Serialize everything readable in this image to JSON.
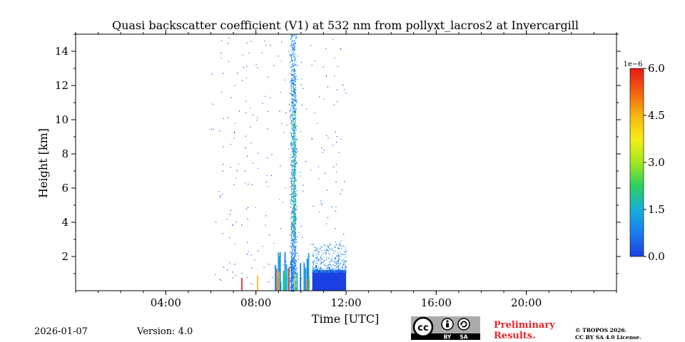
{
  "chart_data": {
    "type": "heatmap",
    "title": "Quasi backscatter coefficient (V1) at 532 nm from pollyxt_lacros2 at Invercargill",
    "xlabel": "Time [UTC]",
    "ylabel": "Height [km]",
    "xlim_hours": [
      0,
      24
    ],
    "ylim_km": [
      0,
      15
    ],
    "x_ticks": [
      {
        "hour": 4,
        "label": "04:00"
      },
      {
        "hour": 8,
        "label": "08:00"
      },
      {
        "hour": 12,
        "label": "12:00"
      },
      {
        "hour": 16,
        "label": "16:00"
      },
      {
        "hour": 20,
        "label": "20:00"
      }
    ],
    "y_ticks": [
      {
        "km": 2,
        "label": "2"
      },
      {
        "km": 4,
        "label": "4"
      },
      {
        "km": 6,
        "label": "6"
      },
      {
        "km": 8,
        "label": "8"
      },
      {
        "km": 10,
        "label": "10"
      },
      {
        "km": 12,
        "label": "12"
      },
      {
        "km": 14,
        "label": "14"
      }
    ],
    "colorbar": {
      "min": 0.0,
      "max": 6.0,
      "multiplier_label": "1e−6",
      "ticks": [
        {
          "value": 0.0,
          "label": "0.0"
        },
        {
          "value": 1.5,
          "label": "1.5"
        },
        {
          "value": 3.0,
          "label": "3.0"
        },
        {
          "value": 4.5,
          "label": "4.5"
        },
        {
          "value": 6.0,
          "label": "6.0"
        }
      ],
      "colors": [
        "#1b3fe0",
        "#1a7df0",
        "#16b0d8",
        "#2ad060",
        "#a4e81e",
        "#f5ee12",
        "#f7b410",
        "#f46010",
        "#e81818"
      ]
    },
    "observation_window_hours": [
      6.0,
      12.0
    ],
    "features": [
      {
        "name": "boundary layer",
        "start_hour": 10.5,
        "end_hour": 12.0,
        "top_km": 1.2,
        "value": 0.2
      },
      {
        "name": "boundary layer edge",
        "start_hour": 10.5,
        "end_hour": 12.0,
        "top_km": 2.8,
        "value": 0.3
      },
      {
        "name": "vertical plume",
        "start_hour": 9.5,
        "end_hour": 9.8,
        "top_km": 15.0,
        "value": 1.2
      },
      {
        "name": "plume core",
        "start_hour": 9.65,
        "end_hour": 9.75,
        "top_km": 10.5,
        "value": 2.0
      },
      {
        "name": "low cloud streaks",
        "start_hour": 8.8,
        "end_hour": 10.4,
        "top_km": 2.6,
        "value": 1.0
      },
      {
        "name": "low high-value streaks",
        "start_hour": 7.3,
        "end_hour": 10.4,
        "top_km": 0.9,
        "value": 5.5
      },
      {
        "name": "sparse noise",
        "start_hour": 6.0,
        "end_hour": 12.0,
        "top_km": 15.0,
        "value": 0.3
      }
    ]
  },
  "footer": {
    "date": "2026-01-07",
    "version": "Version: 4.0",
    "preliminary": [
      "Preliminary",
      "Results."
    ],
    "copyright": [
      "© TROPOS 2026.",
      "CC BY SA 4.0 License."
    ],
    "license_badge": {
      "cc": "cc",
      "by": "BY",
      "sa": "SA"
    }
  }
}
